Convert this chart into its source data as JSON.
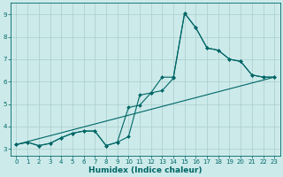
{
  "title": "",
  "xlabel": "Humidex (Indice chaleur)",
  "bg_color": "#cceaea",
  "grid_color": "#aacccc",
  "line_color": "#006666",
  "xlim": [
    -0.5,
    23.5
  ],
  "ylim": [
    2.7,
    9.5
  ],
  "xticks": [
    0,
    1,
    2,
    3,
    4,
    5,
    6,
    7,
    8,
    9,
    10,
    11,
    12,
    13,
    14,
    15,
    16,
    17,
    18,
    19,
    20,
    21,
    22,
    23
  ],
  "yticks": [
    3,
    4,
    5,
    6,
    7,
    8,
    9
  ],
  "line1_x": [
    0,
    1,
    2,
    3,
    4,
    5,
    6,
    7,
    8,
    9,
    10,
    11,
    12,
    13,
    14,
    15,
    16,
    17,
    18,
    19,
    20,
    21,
    22,
    23
  ],
  "line1_y": [
    3.2,
    3.3,
    3.15,
    3.25,
    3.5,
    3.7,
    3.8,
    3.8,
    3.15,
    3.3,
    3.55,
    5.4,
    5.5,
    6.2,
    6.2,
    9.05,
    8.4,
    7.5,
    7.4,
    7.0,
    6.9,
    6.3,
    6.2,
    6.2
  ],
  "line2_x": [
    0,
    1,
    2,
    3,
    4,
    5,
    6,
    7,
    8,
    9,
    10,
    11,
    12,
    13,
    14,
    15,
    16,
    17,
    18,
    19,
    20,
    21,
    22,
    23
  ],
  "line2_y": [
    3.2,
    3.3,
    3.15,
    3.25,
    3.5,
    3.7,
    3.8,
    3.8,
    3.15,
    3.3,
    4.85,
    4.95,
    5.5,
    5.6,
    6.15,
    9.05,
    8.4,
    7.5,
    7.4,
    7.0,
    6.9,
    6.3,
    6.2,
    6.2
  ],
  "line3_x": [
    0,
    23
  ],
  "line3_y": [
    3.2,
    6.2
  ],
  "marker_size": 2.0,
  "linewidth": 0.8,
  "xlabel_fontsize": 6.5,
  "tick_fontsize": 5.0
}
